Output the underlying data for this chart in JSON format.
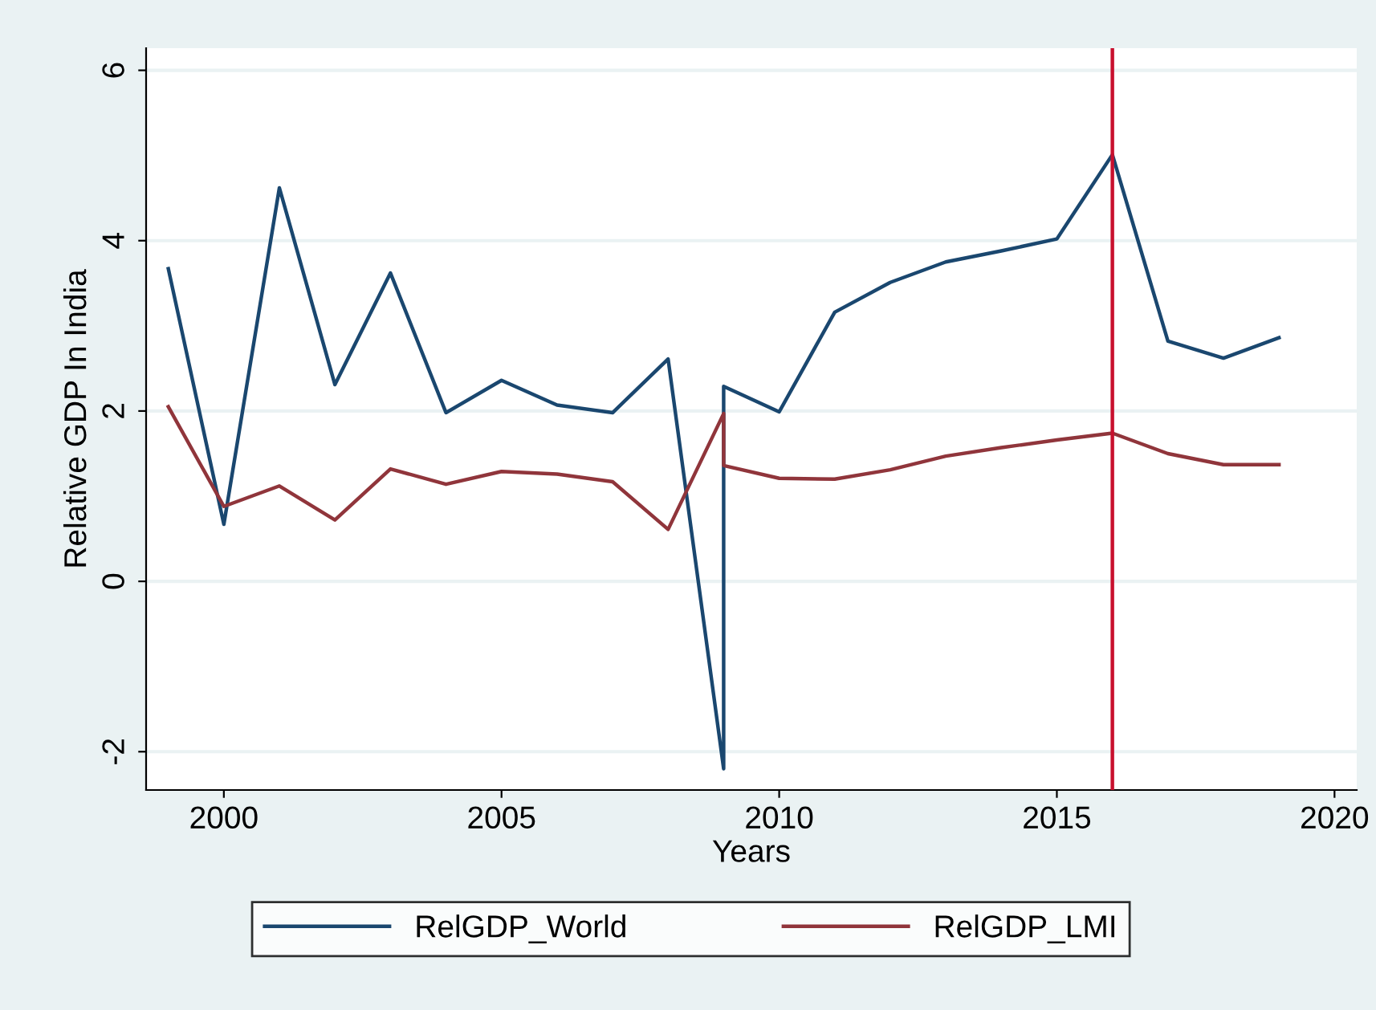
{
  "chart_data": {
    "type": "line",
    "xlabel": "Years",
    "ylabel": "Relative GDP In India",
    "series": [
      {
        "name": "RelGDP_World",
        "color": "#1a476f",
        "x": [
          1999,
          2000,
          2001,
          2002,
          2003,
          2004,
          2005,
          2006,
          2007,
          2008,
          2009,
          2009,
          2010,
          2011,
          2012,
          2013,
          2014,
          2015,
          2016,
          2017,
          2018,
          2019
        ],
        "values": [
          3.67,
          0.67,
          4.62,
          2.31,
          3.62,
          1.98,
          2.36,
          2.07,
          1.98,
          2.61,
          -2.2,
          2.29,
          1.99,
          3.16,
          3.51,
          3.75,
          3.88,
          4.02,
          5.01,
          2.82,
          2.62,
          2.86
        ]
      },
      {
        "name": "RelGDP_LMI",
        "color": "#90353b",
        "x": [
          1999,
          2000,
          2001,
          2002,
          2003,
          2004,
          2005,
          2006,
          2007,
          2008,
          2009,
          2009,
          2010,
          2011,
          2012,
          2013,
          2014,
          2015,
          2016,
          2017,
          2018,
          2019
        ],
        "values": [
          2.05,
          0.88,
          1.12,
          0.72,
          1.32,
          1.14,
          1.29,
          1.26,
          1.17,
          0.61,
          1.97,
          1.36,
          1.21,
          1.2,
          1.31,
          1.47,
          1.57,
          1.66,
          1.74,
          1.5,
          1.37,
          1.37
        ]
      }
    ],
    "xlim": [
      1998.6,
      2020.4
    ],
    "xticks": [
      2000,
      2005,
      2010,
      2015,
      2020
    ],
    "ylim": [
      -2.45,
      6.26
    ],
    "yticks": [
      -2,
      0,
      2,
      4,
      6
    ],
    "ref_lines": [
      {
        "axis": "x",
        "value": 2016,
        "color": "#c8102e"
      }
    ],
    "grid": "y",
    "legend": "bottom",
    "marker": "none",
    "line_style": "solid"
  }
}
